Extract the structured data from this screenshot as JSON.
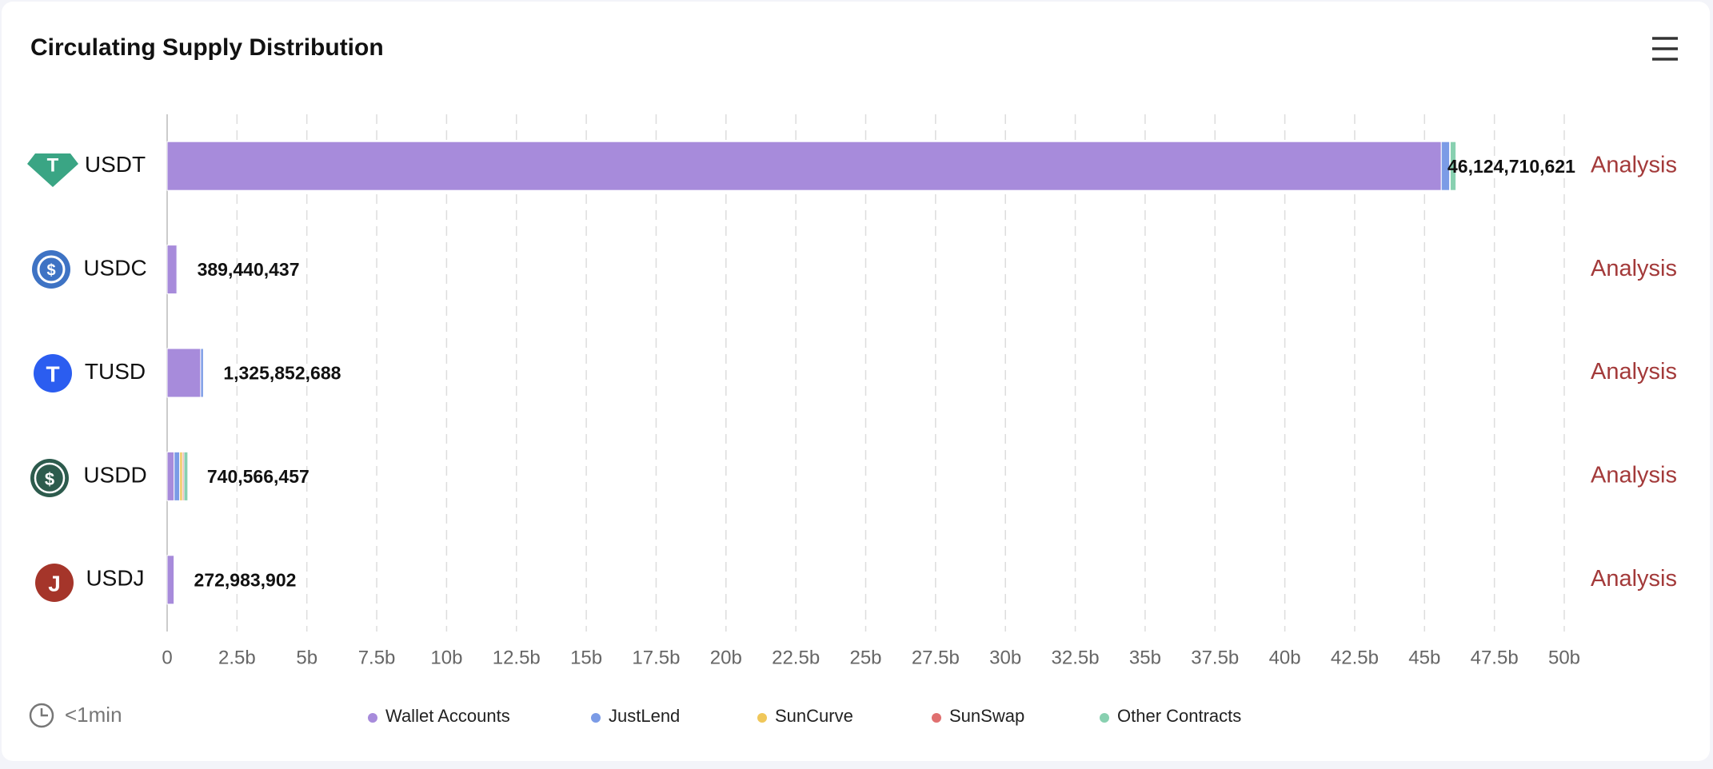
{
  "header": {
    "title": "Circulating Supply Distribution"
  },
  "chart_data": {
    "type": "stacked-bar-horizontal",
    "categories": [
      "USDT",
      "USDC",
      "TUSD",
      "USDD",
      "USDJ"
    ],
    "series": [
      {
        "name": "Wallet Accounts",
        "color": "#a78bdb",
        "values": [
          45600000000,
          350000000,
          1200000000,
          250000000,
          250000000
        ]
      },
      {
        "name": "JustLend",
        "color": "#7b9be6",
        "values": [
          300000000,
          30000000,
          100000000,
          200000000,
          20000000
        ]
      },
      {
        "name": "SunCurve",
        "color": "#f0c75a",
        "values": [
          10000000,
          3000000,
          0,
          100000000,
          1000000
        ]
      },
      {
        "name": "SunSwap",
        "color": "#e07070",
        "values": [
          10000000,
          3000000,
          0,
          50000000,
          1000000
        ]
      },
      {
        "name": "Other Contracts",
        "color": "#88d0b0",
        "values": [
          204710621,
          3440437,
          25852688,
          140566457,
          983902
        ]
      }
    ],
    "totals": [
      {
        "value": 46124710621,
        "label": "46,124,710,621"
      },
      {
        "value": 389440437,
        "label": "389,440,437"
      },
      {
        "value": 1325852688,
        "label": "1,325,852,688"
      },
      {
        "value": 740566457,
        "label": "740,566,457"
      },
      {
        "value": 272983902,
        "label": "272,983,902"
      }
    ],
    "xlim": [
      0,
      50000000000
    ],
    "xticks": [
      0,
      {
        "value": 2500000000,
        "label": "2.5b"
      },
      {
        "value": 5000000000,
        "label": "5b"
      },
      {
        "value": 7500000000,
        "label": "7.5b"
      },
      {
        "value": 10000000000,
        "label": "10b"
      },
      {
        "value": 12500000000,
        "label": "12.5b"
      },
      {
        "value": 15000000000,
        "label": "15b"
      },
      {
        "value": 17500000000,
        "label": "17.5b"
      },
      {
        "value": 20000000000,
        "label": "20b"
      },
      {
        "value": 22500000000,
        "label": "22.5b"
      },
      {
        "value": 25000000000,
        "label": "25b"
      },
      {
        "value": 27500000000,
        "label": "27.5b"
      },
      {
        "value": 30000000000,
        "label": "30b"
      },
      {
        "value": 32500000000,
        "label": "32.5b"
      },
      {
        "value": 35000000000,
        "label": "35b"
      },
      {
        "value": 37500000000,
        "label": "37.5b"
      },
      {
        "value": 40000000000,
        "label": "40b"
      },
      {
        "value": 42500000000,
        "label": "42.5b"
      },
      {
        "value": 45000000000,
        "label": "45b"
      },
      {
        "value": 47500000000,
        "label": "47.5b"
      },
      {
        "value": 50000000000,
        "label": "50b"
      }
    ],
    "grid": true
  },
  "row_links": [
    "Analysis",
    "Analysis",
    "Analysis",
    "Analysis",
    "Analysis"
  ],
  "footer": {
    "updated": "<1min"
  }
}
